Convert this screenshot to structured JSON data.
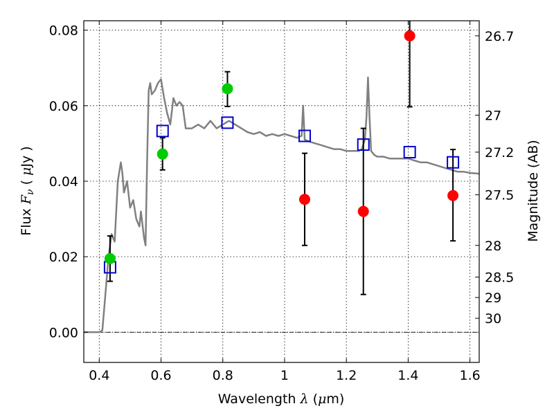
{
  "chart_data": {
    "type": "scatter",
    "title": "",
    "xlabel": {
      "prefix": "Wavelength ",
      "symbol": "λ",
      "open": " (",
      "unit_symbol": "μ",
      "unit_rest": "m)"
    },
    "ylabel": {
      "prefix": "Flux ",
      "symbol": "F",
      "subscript": "ν",
      "open": " ( ",
      "unit_symbol": "μ",
      "unit_rest": "Jy )"
    },
    "y2label": "Magnitude (AB)",
    "xlim": [
      0.35,
      1.63
    ],
    "ylim": [
      -0.008,
      0.0825
    ],
    "grid": true,
    "grid_style": "dotted",
    "x_ticks": [
      {
        "value": 0.4,
        "label": "0.4"
      },
      {
        "value": 0.6,
        "label": "0.6"
      },
      {
        "value": 0.8,
        "label": "0.8"
      },
      {
        "value": 1.0,
        "label": "1"
      },
      {
        "value": 1.2,
        "label": "1.2"
      },
      {
        "value": 1.4,
        "label": "1.4"
      },
      {
        "value": 1.6,
        "label": "1.6"
      }
    ],
    "y_ticks": [
      {
        "value": 0.0,
        "label": "0.00"
      },
      {
        "value": 0.02,
        "label": "0.02"
      },
      {
        "value": 0.04,
        "label": "0.04"
      },
      {
        "value": 0.06,
        "label": "0.06"
      },
      {
        "value": 0.08,
        "label": "0.08"
      }
    ],
    "y2_ticks": [
      {
        "flux": 0.0785,
        "label": "26.7"
      },
      {
        "flux": 0.0575,
        "label": "27"
      },
      {
        "flux": 0.0477,
        "label": "27.2"
      },
      {
        "flux": 0.0364,
        "label": "27.5"
      },
      {
        "flux": 0.023,
        "label": "28"
      },
      {
        "flux": 0.0146,
        "label": "28.5"
      },
      {
        "flux": 0.0092,
        "label": "29"
      },
      {
        "flux": 0.0037,
        "label": "30"
      }
    ],
    "colors": {
      "model": "#808080",
      "model_photometry": "#0000cc",
      "detection": "#00cc00",
      "upper_limit": "#ff0000",
      "errorbar": "#000000",
      "zero_line": "#000000"
    },
    "series": [
      {
        "name": "",
        "kind": "model-spectrum",
        "x": [
          0.35,
          0.4,
          0.41,
          0.42,
          0.43,
          0.44,
          0.45,
          0.46,
          0.47,
          0.475,
          0.48,
          0.49,
          0.5,
          0.51,
          0.52,
          0.53,
          0.535,
          0.545,
          0.55,
          0.555,
          0.56,
          0.565,
          0.57,
          0.58,
          0.59,
          0.6,
          0.61,
          0.62,
          0.63,
          0.64,
          0.65,
          0.66,
          0.67,
          0.68,
          0.7,
          0.72,
          0.74,
          0.76,
          0.78,
          0.8,
          0.82,
          0.84,
          0.86,
          0.88,
          0.9,
          0.92,
          0.94,
          0.96,
          0.98,
          1.0,
          1.02,
          1.04,
          1.055,
          1.06,
          1.065,
          1.08,
          1.1,
          1.12,
          1.14,
          1.16,
          1.18,
          1.2,
          1.22,
          1.24,
          1.25,
          1.26,
          1.265,
          1.27,
          1.275,
          1.28,
          1.29,
          1.3,
          1.32,
          1.34,
          1.36,
          1.38,
          1.4,
          1.42,
          1.44,
          1.46,
          1.48,
          1.5,
          1.52,
          1.54,
          1.56,
          1.58,
          1.6,
          1.63
        ],
        "y": [
          0.0,
          0.0,
          0.0005,
          0.01,
          0.02,
          0.026,
          0.024,
          0.04,
          0.045,
          0.042,
          0.037,
          0.04,
          0.033,
          0.035,
          0.03,
          0.028,
          0.032,
          0.025,
          0.023,
          0.045,
          0.064,
          0.066,
          0.063,
          0.064,
          0.066,
          0.067,
          0.062,
          0.058,
          0.055,
          0.062,
          0.06,
          0.061,
          0.06,
          0.054,
          0.054,
          0.055,
          0.054,
          0.056,
          0.054,
          0.055,
          0.056,
          0.055,
          0.054,
          0.053,
          0.0525,
          0.053,
          0.052,
          0.0525,
          0.052,
          0.0525,
          0.052,
          0.0515,
          0.052,
          0.06,
          0.051,
          0.0505,
          0.05,
          0.0495,
          0.049,
          0.0485,
          0.0485,
          0.048,
          0.048,
          0.048,
          0.0485,
          0.051,
          0.057,
          0.0675,
          0.057,
          0.048,
          0.047,
          0.0465,
          0.0465,
          0.046,
          0.046,
          0.046,
          0.046,
          0.0455,
          0.045,
          0.045,
          0.0445,
          0.044,
          0.0435,
          0.043,
          0.0425,
          0.0425,
          0.0422,
          0.042
        ]
      },
      {
        "name": "",
        "kind": "model-photometry",
        "marker": "open-square",
        "x": [
          0.435,
          0.605,
          0.815,
          1.065,
          1.255,
          1.405,
          1.545
        ],
        "y": [
          0.0172,
          0.0533,
          0.0555,
          0.052,
          0.0497,
          0.0477,
          0.045
        ]
      },
      {
        "name": "",
        "kind": "detection",
        "marker": "filled-circle",
        "x": [
          0.435,
          0.605,
          0.815
        ],
        "y": [
          0.0195,
          0.0472,
          0.0645
        ],
        "yerr_low": [
          0.0135,
          0.043,
          0.0598
        ],
        "yerr_high": [
          0.0255,
          0.0515,
          0.069
        ]
      },
      {
        "name": "",
        "kind": "upper-limit",
        "marker": "filled-circle",
        "x": [
          1.065,
          1.255,
          1.405,
          1.545
        ],
        "y": [
          0.0352,
          0.032,
          0.0785,
          0.0362
        ],
        "yerr_low": [
          0.023,
          0.01,
          0.0597,
          0.0242
        ],
        "yerr_high": [
          0.0474,
          0.054,
          0.085,
          0.0484
        ]
      }
    ]
  }
}
